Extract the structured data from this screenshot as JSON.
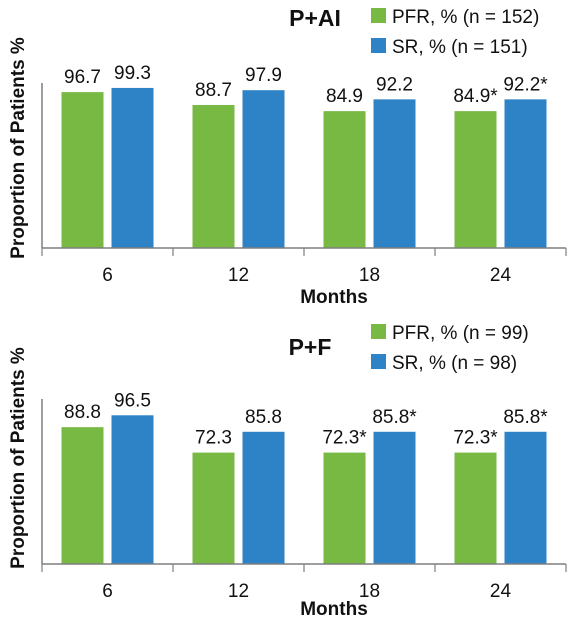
{
  "chart_data": [
    {
      "type": "bar",
      "title": "P+AI",
      "xlabel": "Months",
      "ylabel": "Proportion of Patients %",
      "categories": [
        "6",
        "12",
        "18",
        "24"
      ],
      "ylim": [
        0,
        100
      ],
      "legend_position": "top-right",
      "series": [
        {
          "name": "PFR, % (n = 152)",
          "color": "#77b943",
          "values": [
            96.7,
            88.7,
            84.9,
            84.9
          ],
          "labels": [
            "96.7",
            "88.7",
            "84.9",
            "84.9*"
          ]
        },
        {
          "name": "SR, % (n = 151)",
          "color": "#2d83c6",
          "values": [
            99.3,
            97.9,
            92.2,
            92.2
          ],
          "labels": [
            "99.3",
            "97.9",
            "92.2",
            "92.2*"
          ]
        }
      ]
    },
    {
      "type": "bar",
      "title": "P+F",
      "xlabel": "Months",
      "ylabel": "Proportion of Patients %",
      "categories": [
        "6",
        "12",
        "18",
        "24"
      ],
      "ylim": [
        0,
        100
      ],
      "legend_position": "top-right",
      "series": [
        {
          "name": "PFR, % (n = 99)",
          "color": "#77b943",
          "values": [
            88.8,
            72.3,
            72.3,
            72.3
          ],
          "labels": [
            "88.8",
            "72.3",
            "72.3*",
            "72.3*"
          ]
        },
        {
          "name": "SR, % (n = 98)",
          "color": "#2d83c6",
          "values": [
            96.5,
            85.8,
            85.8,
            85.8
          ],
          "labels": [
            "96.5",
            "85.8",
            "85.8*",
            "85.8*"
          ]
        }
      ]
    }
  ]
}
